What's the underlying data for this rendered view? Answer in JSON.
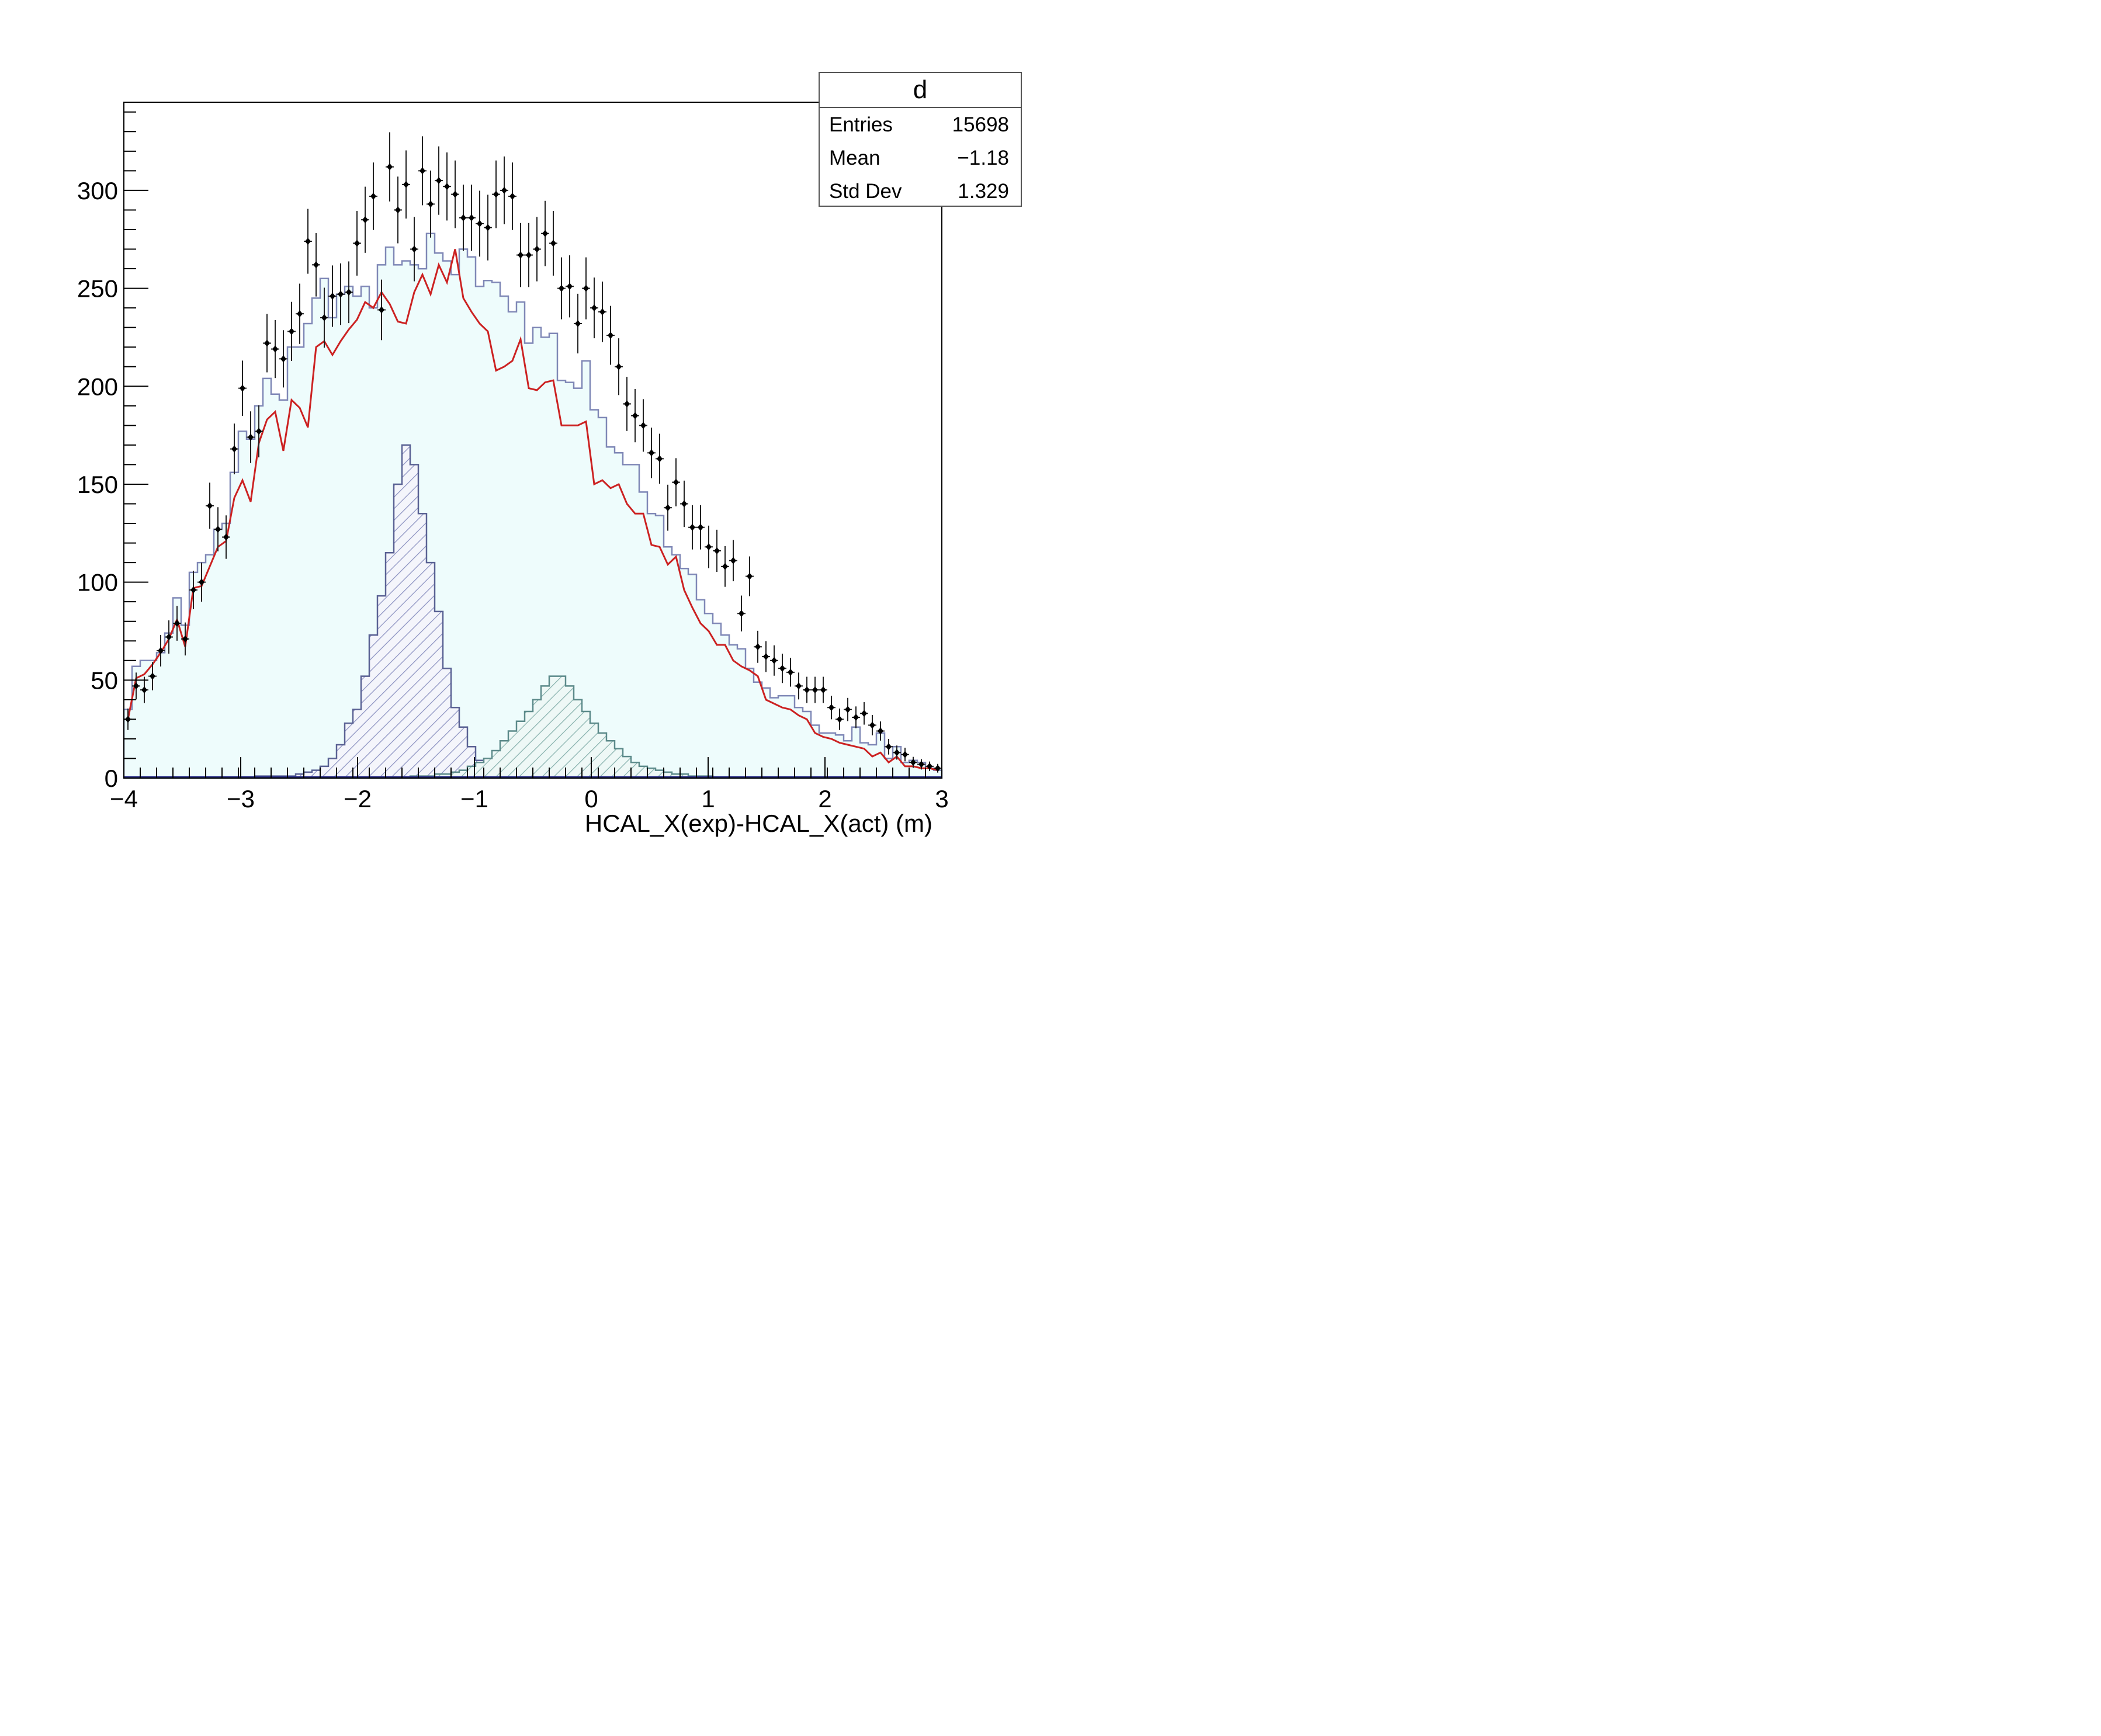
{
  "stats_box": {
    "title": "d",
    "rows": [
      {
        "label": "Entries",
        "value": "15698"
      },
      {
        "label": "Mean",
        "value": "−1.18"
      },
      {
        "label": "Std Dev",
        "value": "1.329"
      }
    ]
  },
  "colors": {
    "total_fill": "#eefcfc",
    "total_line": "#7f87b6",
    "peak1_line": "#5a6294",
    "peak2_line": "#5c8a8a",
    "fit_line": "#cc2222",
    "data_marker": "#000000"
  },
  "chart_data": {
    "type": "histogram",
    "xlabel": "HCAL_X(exp)-HCAL_X(act) (m)",
    "ylabel": "",
    "xlim": [
      -4,
      3
    ],
    "ylim": [
      0,
      345
    ],
    "x_ticks": [
      -4,
      -3,
      -2,
      -1,
      0,
      1,
      2,
      3
    ],
    "x_tick_labels": [
      "−4",
      "−3",
      "−2",
      "−1",
      "0",
      "1",
      "2",
      "3"
    ],
    "y_ticks": [
      0,
      50,
      100,
      150,
      200,
      250,
      300
    ],
    "y_tick_labels": [
      "0",
      "50",
      "100",
      "150",
      "200",
      "250",
      "300"
    ],
    "grid": false,
    "bin_edges": [
      -4.0,
      3.0
    ],
    "num_bins": 100,
    "series": [
      {
        "style": "points-with-errors",
        "values": [
          30,
          47,
          45,
          52,
          65,
          72,
          79,
          71,
          96,
          100,
          139,
          127,
          123,
          168,
          199,
          174,
          177,
          222,
          219,
          214,
          228,
          237,
          274,
          262,
          235,
          246,
          247,
          248,
          273,
          285,
          297,
          239,
          312,
          290,
          303,
          270,
          310,
          293,
          305,
          302,
          298,
          286,
          286,
          283,
          281,
          298,
          300,
          297,
          267,
          267,
          270,
          278,
          273,
          250,
          251,
          232,
          250,
          240,
          238,
          226,
          210,
          191,
          185,
          180,
          166,
          163,
          138,
          151,
          140,
          128,
          128,
          118,
          116,
          108,
          111,
          84,
          103,
          67,
          62,
          60,
          56,
          54,
          47,
          45,
          45,
          45,
          36,
          30,
          35,
          31,
          33,
          27,
          24,
          16,
          13,
          12,
          8,
          7,
          6,
          5
        ]
      },
      {
        "style": "filled-step",
        "values": [
          35,
          57,
          60,
          60,
          64,
          74,
          92,
          78,
          105,
          110,
          114,
          127,
          130,
          156,
          177,
          173,
          190,
          204,
          196,
          193,
          220,
          220,
          232,
          245,
          255,
          235,
          247,
          251,
          246,
          251,
          240,
          262,
          271,
          262,
          264,
          262,
          260,
          278,
          268,
          264,
          257,
          270,
          266,
          251,
          254,
          253,
          246,
          238,
          243,
          222,
          230,
          225,
          227,
          203,
          202,
          199,
          213,
          188,
          184,
          169,
          166,
          160,
          160,
          146,
          135,
          134,
          118,
          114,
          107,
          104,
          91,
          84,
          79,
          73,
          68,
          66,
          56,
          49,
          46,
          41,
          42,
          42,
          36,
          34,
          27,
          23,
          23,
          22,
          19,
          26,
          18,
          17,
          23,
          10,
          16,
          8,
          9,
          8,
          5,
          4
        ]
      },
      {
        "style": "line",
        "values": [
          30,
          51,
          53,
          58,
          64,
          71,
          81,
          67,
          97,
          98,
          108,
          118,
          121,
          143,
          152,
          141,
          171,
          183,
          187,
          167,
          193,
          189,
          179,
          220,
          223,
          216,
          223,
          229,
          234,
          243,
          240,
          248,
          242,
          233,
          232,
          248,
          257,
          247,
          262,
          253,
          270,
          245,
          238,
          232,
          228,
          208,
          210,
          213,
          224,
          199,
          198,
          202,
          203,
          180,
          180,
          180,
          182,
          150,
          152,
          148,
          150,
          140,
          135,
          135,
          119,
          118,
          109,
          113,
          96,
          87,
          79,
          75,
          68,
          68,
          60,
          57,
          55,
          52,
          40,
          38,
          36,
          35,
          32,
          30,
          23,
          21,
          20,
          18,
          17,
          16,
          15,
          11,
          13,
          8,
          11,
          6,
          6,
          5,
          5,
          4
        ]
      },
      {
        "style": "hatched-step",
        "values": [
          0,
          0,
          0,
          0,
          0,
          0,
          0,
          0,
          0,
          0,
          0,
          0,
          0,
          0,
          0,
          0,
          1,
          1,
          1,
          1,
          1,
          2,
          3,
          4,
          6,
          10,
          17,
          28,
          35,
          52,
          73,
          93,
          115,
          150,
          170,
          160,
          135,
          110,
          85,
          56,
          36,
          26,
          16,
          9,
          7,
          5,
          4,
          3,
          2,
          1,
          1,
          1,
          0,
          0,
          0,
          0,
          0,
          0,
          0,
          0,
          0,
          0,
          0,
          0,
          0,
          0,
          0,
          0,
          0,
          0,
          0,
          0,
          0,
          0,
          0,
          0,
          0,
          0,
          0,
          0,
          0,
          0,
          0,
          0,
          0,
          0,
          0,
          0,
          0,
          0,
          0,
          0,
          0,
          0,
          0,
          0,
          0,
          0,
          0,
          0
        ]
      },
      {
        "style": "hatched-step",
        "values": [
          0,
          0,
          0,
          0,
          0,
          0,
          0,
          0,
          0,
          0,
          0,
          0,
          0,
          0,
          0,
          0,
          0,
          0,
          0,
          0,
          0,
          0,
          0,
          0,
          0,
          0,
          0,
          0,
          0,
          0,
          0,
          0,
          0,
          0,
          0,
          1,
          1,
          1,
          2,
          2,
          3,
          4,
          6,
          8,
          10,
          14,
          19,
          24,
          29,
          34,
          40,
          47,
          52,
          52,
          47,
          40,
          34,
          28,
          23,
          19,
          15,
          11,
          8,
          6,
          5,
          4,
          3,
          2,
          2,
          1,
          1,
          1,
          0,
          0,
          0,
          0,
          0,
          0,
          0,
          0,
          0,
          0,
          0,
          0,
          0,
          0,
          0,
          0,
          0,
          0,
          0,
          0,
          0,
          0,
          0,
          0,
          0,
          0,
          0,
          0
        ]
      }
    ]
  }
}
